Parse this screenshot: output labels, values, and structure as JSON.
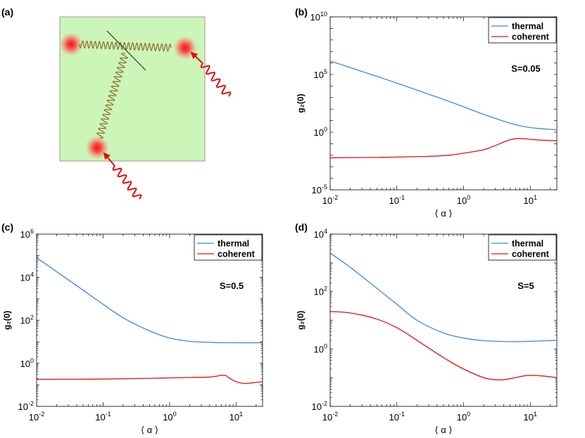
{
  "panel_labels": {
    "a": "(a)",
    "b": "(b)",
    "c": "(c)",
    "d": "(d)"
  },
  "colors": {
    "thermal": "#3f88e0",
    "coherent": "#e01414",
    "panel_bg": "#ccf5b8",
    "spring": "#8a6d2b",
    "particle": "#ff1a1a"
  },
  "schematic": {
    "description_icons": [
      "particle-icon",
      "spring-icon",
      "photon-wave-icon",
      "photon-arrow-icon"
    ]
  },
  "chart_data": [
    {
      "id": "b",
      "type": "line",
      "title": "",
      "xlabel": "⟨ α ⟩",
      "ylabel": "g₂(0)",
      "xscale": "log",
      "yscale": "log",
      "xlim": [
        0.01,
        25
      ],
      "ylim": [
        1e-05,
        10000000000.0
      ],
      "xticks": [
        {
          "value": 0.01,
          "base": "10",
          "exp": "-2"
        },
        {
          "value": 0.1,
          "base": "10",
          "exp": "-1"
        },
        {
          "value": 1,
          "base": "10",
          "exp": "0"
        },
        {
          "value": 10,
          "base": "10",
          "exp": "1"
        }
      ],
      "yticks": [
        {
          "value": 1e-05,
          "base": "10",
          "exp": "-5"
        },
        {
          "value": 1,
          "base": "10",
          "exp": "0"
        },
        {
          "value": 100000.0,
          "base": "10",
          "exp": "5"
        },
        {
          "value": 10000000000.0,
          "base": "10",
          "exp": "10"
        }
      ],
      "annotation": "S=0.05",
      "legend": {
        "position": "top-right",
        "entries": [
          "thermal",
          "coherent"
        ]
      },
      "series": [
        {
          "name": "thermal",
          "x": [
            0.01,
            0.02,
            0.05,
            0.1,
            0.2,
            0.5,
            1,
            2,
            5,
            10,
            25
          ],
          "y": [
            1500000.0,
            400000.0,
            70000.0,
            18000.0,
            4500.0,
            700.0,
            160.0,
            35,
            6,
            2.5,
            1.6
          ]
        },
        {
          "name": "coherent",
          "x": [
            0.01,
            0.05,
            0.1,
            0.3,
            0.6,
            1,
            2,
            3,
            4,
            5,
            6,
            8,
            10,
            15,
            25
          ],
          "y": [
            0.006,
            0.0065,
            0.007,
            0.008,
            0.01,
            0.015,
            0.03,
            0.07,
            0.14,
            0.22,
            0.27,
            0.27,
            0.24,
            0.2,
            0.18
          ]
        }
      ]
    },
    {
      "id": "c",
      "type": "line",
      "title": "",
      "xlabel": "⟨ α ⟩",
      "ylabel": "g₂(0)",
      "xscale": "log",
      "yscale": "log",
      "xlim": [
        0.01,
        25
      ],
      "ylim": [
        0.01,
        1000000.0
      ],
      "xticks": [
        {
          "value": 0.01,
          "base": "10",
          "exp": "-2"
        },
        {
          "value": 0.1,
          "base": "10",
          "exp": "-1"
        },
        {
          "value": 1,
          "base": "10",
          "exp": "0"
        },
        {
          "value": 10,
          "base": "10",
          "exp": "1"
        }
      ],
      "yticks": [
        {
          "value": 0.01,
          "base": "10",
          "exp": "-2"
        },
        {
          "value": 1,
          "base": "10",
          "exp": "0"
        },
        {
          "value": 100,
          "base": "10",
          "exp": "2"
        },
        {
          "value": 10000.0,
          "base": "10",
          "exp": "4"
        },
        {
          "value": 1000000.0,
          "base": "10",
          "exp": "6"
        }
      ],
      "annotation": "S=0.5",
      "legend": {
        "position": "top-right",
        "entries": [
          "thermal",
          "coherent"
        ]
      },
      "series": [
        {
          "name": "thermal",
          "x": [
            0.01,
            0.02,
            0.05,
            0.1,
            0.2,
            0.5,
            1,
            2,
            5,
            10,
            25
          ],
          "y": [
            80000.0,
            18000.0,
            2500.0,
            550.0,
            130.0,
            32,
            15,
            10.5,
            9.2,
            9.0,
            9.0
          ]
        },
        {
          "name": "coherent",
          "x": [
            0.01,
            0.1,
            0.5,
            1,
            2,
            4,
            5,
            6,
            7,
            8,
            10,
            13,
            16,
            20,
            25
          ],
          "y": [
            0.18,
            0.185,
            0.2,
            0.21,
            0.22,
            0.23,
            0.25,
            0.28,
            0.27,
            0.2,
            0.14,
            0.115,
            0.12,
            0.13,
            0.14
          ]
        }
      ]
    },
    {
      "id": "d",
      "type": "line",
      "title": "",
      "xlabel": "⟨ α ⟩",
      "ylabel": "g₂(0)",
      "xscale": "log",
      "yscale": "log",
      "xlim": [
        0.01,
        25
      ],
      "ylim": [
        0.01,
        10000.0
      ],
      "xticks": [
        {
          "value": 0.01,
          "base": "10",
          "exp": "-2"
        },
        {
          "value": 0.1,
          "base": "10",
          "exp": "-1"
        },
        {
          "value": 1,
          "base": "10",
          "exp": "0"
        },
        {
          "value": 10,
          "base": "10",
          "exp": "1"
        }
      ],
      "yticks": [
        {
          "value": 0.01,
          "base": "10",
          "exp": "-2"
        },
        {
          "value": 1,
          "base": "10",
          "exp": "0"
        },
        {
          "value": 100,
          "base": "10",
          "exp": "2"
        },
        {
          "value": 10000.0,
          "base": "10",
          "exp": "4"
        }
      ],
      "annotation": "S=5",
      "legend": {
        "position": "top-right",
        "entries": [
          "thermal",
          "coherent"
        ]
      },
      "series": [
        {
          "name": "thermal",
          "x": [
            0.01,
            0.02,
            0.05,
            0.1,
            0.2,
            0.5,
            1,
            2,
            5,
            10,
            25
          ],
          "y": [
            2200.0,
            700.0,
            130.0,
            36,
            10,
            3.6,
            2.4,
            1.95,
            1.8,
            1.85,
            2.0
          ]
        },
        {
          "name": "coherent",
          "x": [
            0.01,
            0.02,
            0.05,
            0.1,
            0.2,
            0.5,
            1,
            2,
            3,
            4,
            6,
            8,
            10,
            15,
            25
          ],
          "y": [
            20,
            18,
            11,
            5.5,
            2,
            0.5,
            0.2,
            0.1,
            0.085,
            0.085,
            0.1,
            0.115,
            0.12,
            0.115,
            0.1
          ]
        }
      ]
    }
  ]
}
